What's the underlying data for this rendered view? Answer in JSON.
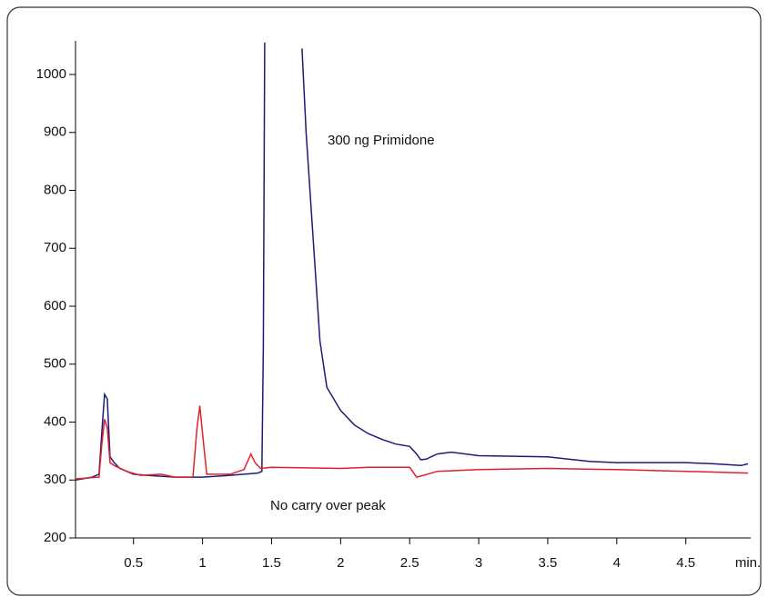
{
  "chart_data": {
    "type": "line",
    "x_label": "min.",
    "annotations": [
      "300 ng Primidone",
      "No carry over peak"
    ],
    "xlim": [
      0.08,
      4.97
    ],
    "ylim": [
      200,
      1058
    ],
    "xticks": [
      0.5,
      1,
      1.5,
      2,
      2.5,
      3,
      3.5,
      4,
      4.5
    ],
    "yticks": [
      200,
      300,
      400,
      500,
      600,
      700,
      800,
      900,
      1000
    ],
    "series": [
      {
        "color": "#1c1c78",
        "x": [
          0.08,
          0.2,
          0.25,
          0.27,
          0.29,
          0.31,
          0.33,
          0.36,
          0.4,
          0.5,
          0.6,
          0.8,
          1.0,
          1.2,
          1.4,
          1.43,
          1.44,
          1.45,
          1.58,
          1.72,
          1.75,
          1.8,
          1.85,
          1.9,
          2.0,
          2.1,
          2.2,
          2.3,
          2.4,
          2.5,
          2.55,
          2.58,
          2.62,
          2.7,
          2.8,
          3.0,
          3.5,
          3.8,
          4.0,
          4.5,
          4.7,
          4.9,
          4.95
        ],
        "values": [
          300,
          305,
          310,
          380,
          448,
          440,
          340,
          330,
          320,
          310,
          308,
          305,
          305,
          308,
          312,
          315,
          530,
          1055,
          null,
          1045,
          900,
          720,
          540,
          460,
          420,
          395,
          380,
          370,
          362,
          358,
          345,
          335,
          336,
          345,
          348,
          342,
          340,
          332,
          330,
          330,
          328,
          325,
          328
        ]
      },
      {
        "color": "#e0202a",
        "x": [
          0.08,
          0.25,
          0.27,
          0.29,
          0.31,
          0.33,
          0.36,
          0.45,
          0.55,
          0.7,
          0.8,
          0.93,
          0.96,
          0.98,
          1.0,
          1.03,
          1.2,
          1.3,
          1.35,
          1.38,
          1.42,
          1.5,
          2.0,
          2.2,
          2.5,
          2.55,
          2.6,
          2.7,
          3.0,
          3.5,
          4.0,
          4.5,
          4.95
        ],
        "values": [
          302,
          305,
          360,
          405,
          390,
          330,
          325,
          315,
          308,
          310,
          305,
          305,
          390,
          428,
          380,
          310,
          310,
          318,
          345,
          330,
          320,
          322,
          320,
          322,
          322,
          305,
          308,
          315,
          318,
          320,
          318,
          315,
          312
        ]
      }
    ]
  }
}
